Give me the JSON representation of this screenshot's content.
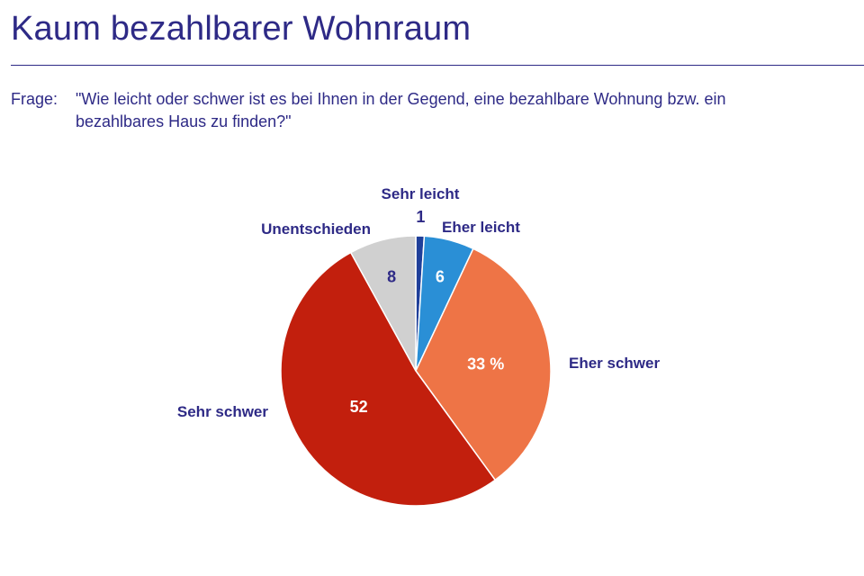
{
  "header": {
    "title": "Kaum bezahlbarer Wohnraum"
  },
  "question": {
    "label": "Frage:",
    "text": "\"Wie leicht oder schwer ist es bei Ihnen in der Gegend, eine bezahlbare Wohnung bzw. ein bezahlbares Haus zu finden?\""
  },
  "chart_data": {
    "type": "pie",
    "title": "",
    "slices": [
      {
        "name": "Sehr leicht",
        "value": 1,
        "value_label": "1",
        "color": "#1f3f9a",
        "value_color": "#2e2a86",
        "label_color": "#2e2a86",
        "label_bold": true
      },
      {
        "name": "Eher leicht",
        "value": 6,
        "value_label": "6",
        "color": "#2a8fd6",
        "value_color": "#ffffff",
        "label_color": "#2e2a86",
        "label_bold": true
      },
      {
        "name": "Eher schwer",
        "value": 33,
        "value_label": "33 %",
        "color": "#ee7446",
        "value_color": "#ffffff",
        "label_color": "#2e2a86",
        "label_bold": true
      },
      {
        "name": "Sehr schwer",
        "value": 52,
        "value_label": "52",
        "color": "#c21f0d",
        "value_color": "#ffffff",
        "label_color": "#2e2a86",
        "label_bold": true
      },
      {
        "name": "Unentschieden",
        "value": 8,
        "value_label": "8",
        "color": "#d0d0d0",
        "value_color": "#2e2a86",
        "label_color": "#4a4aa0",
        "label_bold": false
      }
    ]
  }
}
